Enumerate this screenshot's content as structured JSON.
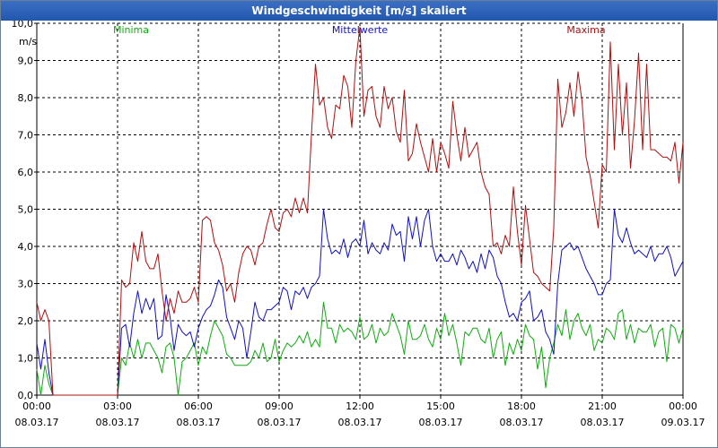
{
  "window": {
    "title": "Windgeschwindigkeit [m/s] skaliert"
  },
  "chart_data": {
    "type": "line",
    "title": "Windgeschwindigkeit [m/s] skaliert",
    "ylabel": "m/s",
    "xlabel": "",
    "ylim": [
      0,
      10
    ],
    "xlim": [
      0,
      24
    ],
    "grid": true,
    "y_ticks": [
      "0,0",
      "1,0",
      "2,0",
      "3,0",
      "4,0",
      "5,0",
      "6,0",
      "7,0",
      "8,0",
      "9,0",
      "10,0"
    ],
    "x_ticks": [
      {
        "time": "00:00",
        "date": "08.03.17",
        "hour": 0
      },
      {
        "time": "03:00",
        "date": "08.03.17",
        "hour": 3
      },
      {
        "time": "06:00",
        "date": "08.03.17",
        "hour": 6
      },
      {
        "time": "09:00",
        "date": "08.03.17",
        "hour": 9
      },
      {
        "time": "12:00",
        "date": "08.03.17",
        "hour": 12
      },
      {
        "time": "15:00",
        "date": "08.03.17",
        "hour": 15
      },
      {
        "time": "18:00",
        "date": "08.03.17",
        "hour": 18
      },
      {
        "time": "21:00",
        "date": "08.03.17",
        "hour": 21
      },
      {
        "time": "00:00",
        "date": "09.03.17",
        "hour": 24
      }
    ],
    "series": [
      {
        "name": "Minima",
        "color": "#11aa11",
        "x": [
          0,
          0.15,
          0.3,
          0.45,
          0.6,
          0.75,
          3.0,
          3.15,
          3.3,
          3.45,
          3.6,
          3.75,
          3.9,
          4.05,
          4.2,
          4.35,
          4.5,
          4.65,
          4.8,
          4.95,
          5.1,
          5.25,
          5.4,
          5.55,
          5.7,
          5.85,
          6.0,
          6.15,
          6.3,
          6.45,
          6.6,
          6.75,
          6.9,
          7.05,
          7.2,
          7.35,
          7.5,
          7.65,
          7.8,
          7.95,
          8.1,
          8.25,
          8.4,
          8.55,
          8.7,
          8.85,
          9.0,
          9.15,
          9.3,
          9.45,
          9.6,
          9.75,
          9.9,
          10.05,
          10.2,
          10.35,
          10.5,
          10.65,
          10.8,
          10.95,
          11.1,
          11.25,
          11.4,
          11.55,
          11.7,
          11.85,
          12.0,
          12.15,
          12.3,
          12.45,
          12.6,
          12.75,
          12.9,
          13.05,
          13.2,
          13.35,
          13.5,
          13.65,
          13.8,
          13.95,
          14.1,
          14.25,
          14.4,
          14.55,
          14.7,
          14.85,
          15.0,
          15.15,
          15.3,
          15.45,
          15.6,
          15.75,
          15.9,
          16.05,
          16.2,
          16.35,
          16.5,
          16.65,
          16.8,
          16.95,
          17.1,
          17.25,
          17.4,
          17.55,
          17.7,
          17.85,
          18.0,
          18.15,
          18.3,
          18.45,
          18.6,
          18.75,
          18.9,
          19.05,
          19.2,
          19.35,
          19.5,
          19.65,
          19.8,
          19.95,
          20.1,
          20.25,
          20.4,
          20.55,
          20.7,
          20.85,
          21.0,
          21.15,
          21.3,
          21.45,
          21.6,
          21.75,
          21.9,
          22.05,
          22.2,
          22.35,
          22.5,
          22.65,
          22.8,
          22.95,
          23.1,
          23.25,
          23.4,
          23.55,
          23.7,
          23.85,
          24.0
        ],
        "values": [
          0.7,
          0.0,
          0.8,
          0.3,
          0.0,
          0.0,
          0.0,
          1.0,
          0.8,
          1.4,
          1.0,
          1.5,
          1.0,
          1.4,
          1.4,
          1.2,
          1.0,
          0.6,
          1.3,
          1.4,
          1.0,
          0.0,
          0.9,
          1.0,
          1.2,
          1.4,
          0.8,
          1.3,
          1.1,
          1.6,
          2.0,
          1.8,
          1.6,
          1.1,
          1.0,
          0.8,
          0.8,
          0.8,
          0.8,
          0.9,
          1.2,
          1.0,
          1.4,
          0.9,
          1.0,
          1.5,
          0.9,
          1.2,
          1.4,
          1.3,
          1.4,
          1.6,
          1.4,
          1.7,
          1.3,
          1.5,
          1.3,
          2.5,
          1.8,
          1.8,
          1.4,
          1.9,
          1.7,
          1.8,
          1.7,
          1.5,
          2.1,
          1.5,
          1.6,
          1.9,
          1.4,
          1.8,
          1.6,
          1.7,
          2.2,
          1.9,
          1.6,
          1.1,
          2.0,
          1.5,
          1.5,
          1.6,
          1.9,
          1.5,
          1.3,
          1.8,
          1.5,
          2.2,
          1.6,
          1.9,
          1.4,
          0.8,
          1.7,
          1.6,
          1.8,
          1.8,
          1.5,
          1.4,
          1.8,
          1.0,
          1.5,
          1.7,
          0.8,
          1.4,
          1.1,
          1.5,
          1.2,
          1.9,
          1.6,
          1.5,
          0.7,
          1.3,
          0.2,
          1.0,
          1.4,
          1.9,
          1.6,
          2.3,
          1.5,
          2.0,
          2.2,
          1.8,
          1.6,
          1.9,
          1.2,
          1.5,
          1.4,
          1.8,
          1.7,
          1.5,
          2.2,
          2.3,
          1.5,
          1.9,
          1.4,
          1.8,
          1.7,
          1.7,
          1.9,
          1.3,
          1.7,
          1.8,
          0.9,
          1.9,
          1.8,
          1.4,
          1.8
        ]
      },
      {
        "name": "Mittelwerte",
        "color": "#1111bb",
        "x": [
          0,
          0.15,
          0.3,
          0.45,
          0.6,
          0.75,
          3.0,
          3.15,
          3.3,
          3.45,
          3.6,
          3.75,
          3.9,
          4.05,
          4.2,
          4.35,
          4.5,
          4.65,
          4.8,
          4.95,
          5.1,
          5.25,
          5.4,
          5.55,
          5.7,
          5.85,
          6.0,
          6.15,
          6.3,
          6.45,
          6.6,
          6.75,
          6.9,
          7.05,
          7.2,
          7.35,
          7.5,
          7.65,
          7.8,
          7.95,
          8.1,
          8.25,
          8.4,
          8.55,
          8.7,
          8.85,
          9.0,
          9.15,
          9.3,
          9.45,
          9.6,
          9.75,
          9.9,
          10.05,
          10.2,
          10.35,
          10.5,
          10.65,
          10.8,
          10.95,
          11.1,
          11.25,
          11.4,
          11.55,
          11.7,
          11.85,
          12.0,
          12.15,
          12.3,
          12.45,
          12.6,
          12.75,
          12.9,
          13.05,
          13.2,
          13.35,
          13.5,
          13.65,
          13.8,
          13.95,
          14.1,
          14.25,
          14.4,
          14.55,
          14.7,
          14.85,
          15.0,
          15.15,
          15.3,
          15.45,
          15.6,
          15.75,
          15.9,
          16.05,
          16.2,
          16.35,
          16.5,
          16.65,
          16.8,
          16.95,
          17.1,
          17.25,
          17.4,
          17.55,
          17.7,
          17.85,
          18.0,
          18.15,
          18.3,
          18.45,
          18.6,
          18.75,
          18.9,
          19.05,
          19.2,
          19.35,
          19.5,
          19.65,
          19.8,
          19.95,
          20.1,
          20.25,
          20.4,
          20.55,
          20.7,
          20.85,
          21.0,
          21.15,
          21.3,
          21.45,
          21.6,
          21.75,
          21.9,
          22.05,
          22.2,
          22.35,
          22.5,
          22.65,
          22.8,
          22.95,
          23.1,
          23.25,
          23.4,
          23.55,
          23.7,
          23.85,
          24.0
        ],
        "values": [
          1.4,
          0.7,
          1.5,
          0.6,
          0.0,
          0.0,
          0.0,
          1.8,
          1.9,
          1.3,
          2.2,
          2.8,
          2.2,
          2.6,
          2.3,
          2.6,
          1.5,
          1.6,
          2.7,
          2.1,
          1.2,
          1.9,
          1.7,
          1.6,
          1.7,
          1.3,
          1.8,
          2.1,
          2.3,
          2.4,
          2.7,
          3.1,
          2.9,
          2.1,
          1.8,
          1.5,
          2.0,
          1.8,
          1.0,
          1.7,
          2.5,
          2.1,
          2.0,
          2.3,
          2.3,
          2.4,
          2.5,
          2.9,
          2.8,
          2.3,
          2.8,
          2.7,
          2.9,
          2.6,
          2.9,
          3.0,
          3.2,
          5.0,
          4.2,
          3.8,
          3.9,
          3.8,
          4.2,
          3.7,
          4.1,
          4.2,
          4.0,
          4.7,
          3.8,
          4.1,
          3.9,
          3.8,
          4.1,
          3.9,
          4.6,
          4.3,
          4.4,
          3.6,
          4.8,
          4.2,
          4.8,
          4.0,
          4.7,
          5.0,
          4.0,
          3.6,
          3.8,
          3.6,
          3.6,
          3.8,
          3.5,
          3.9,
          3.7,
          3.4,
          3.6,
          3.3,
          3.8,
          3.4,
          3.9,
          3.7,
          3.2,
          3.0,
          2.5,
          2.1,
          2.2,
          2.0,
          2.5,
          2.6,
          2.8,
          2.0,
          2.1,
          2.3,
          1.7,
          1.5,
          1.1,
          3.0,
          3.9,
          4.0,
          4.1,
          3.9,
          4.0,
          3.7,
          3.4,
          3.2,
          3.0,
          2.7,
          2.7,
          3.0,
          3.1,
          5.0,
          4.3,
          4.1,
          4.5,
          4.1,
          3.8,
          3.9,
          3.8,
          3.7,
          4.0,
          3.6,
          3.8,
          3.8,
          4.0,
          3.7,
          3.2,
          3.4,
          3.6
        ]
      },
      {
        "name": "Maxima",
        "color": "#aa1111",
        "x": [
          0,
          0.15,
          0.3,
          0.45,
          0.6,
          0.75,
          3.0,
          3.15,
          3.3,
          3.45,
          3.6,
          3.75,
          3.9,
          4.05,
          4.2,
          4.35,
          4.5,
          4.65,
          4.8,
          4.95,
          5.1,
          5.25,
          5.4,
          5.55,
          5.7,
          5.85,
          6.0,
          6.15,
          6.3,
          6.45,
          6.6,
          6.75,
          6.9,
          7.05,
          7.2,
          7.35,
          7.5,
          7.65,
          7.8,
          7.95,
          8.1,
          8.25,
          8.4,
          8.55,
          8.7,
          8.85,
          9.0,
          9.15,
          9.3,
          9.45,
          9.6,
          9.75,
          9.9,
          10.05,
          10.2,
          10.35,
          10.5,
          10.65,
          10.8,
          10.95,
          11.1,
          11.25,
          11.4,
          11.55,
          11.7,
          11.85,
          12.0,
          12.15,
          12.3,
          12.45,
          12.6,
          12.75,
          12.9,
          13.05,
          13.2,
          13.35,
          13.5,
          13.65,
          13.8,
          13.95,
          14.1,
          14.25,
          14.4,
          14.55,
          14.7,
          14.85,
          15.0,
          15.15,
          15.3,
          15.45,
          15.6,
          15.75,
          15.9,
          16.05,
          16.2,
          16.35,
          16.5,
          16.65,
          16.8,
          16.95,
          17.1,
          17.25,
          17.4,
          17.55,
          17.7,
          17.85,
          18.0,
          18.15,
          18.3,
          18.45,
          18.6,
          18.75,
          18.9,
          19.05,
          19.2,
          19.35,
          19.5,
          19.65,
          19.8,
          19.95,
          20.1,
          20.25,
          20.4,
          20.55,
          20.7,
          20.85,
          21.0,
          21.15,
          21.3,
          21.45,
          21.6,
          21.75,
          21.9,
          22.05,
          22.2,
          22.35,
          22.5,
          22.65,
          22.8,
          22.95,
          23.1,
          23.25,
          23.4,
          23.55,
          23.7,
          23.85,
          24.0
        ],
        "values": [
          2.5,
          2.0,
          2.3,
          2.0,
          0.0,
          0.0,
          0.0,
          3.1,
          2.9,
          3.0,
          4.1,
          3.6,
          4.4,
          3.6,
          3.4,
          3.4,
          3.8,
          2.8,
          2.0,
          2.6,
          2.2,
          2.8,
          2.5,
          2.5,
          2.6,
          2.9,
          2.5,
          4.7,
          4.8,
          4.7,
          4.1,
          3.9,
          3.5,
          2.8,
          3.0,
          2.5,
          3.3,
          3.8,
          4.0,
          3.9,
          3.5,
          4.0,
          4.1,
          4.6,
          5.0,
          4.5,
          4.4,
          4.9,
          5.0,
          4.8,
          5.3,
          4.9,
          5.3,
          4.9,
          7.0,
          8.9,
          7.8,
          8.0,
          7.2,
          6.9,
          7.8,
          7.7,
          8.6,
          8.3,
          7.2,
          9.0,
          9.9,
          7.5,
          8.2,
          8.3,
          7.5,
          7.2,
          8.3,
          7.7,
          8.0,
          7.1,
          6.8,
          8.2,
          6.3,
          6.5,
          7.3,
          6.8,
          6.4,
          6.0,
          6.9,
          6.0,
          6.8,
          6.5,
          6.1,
          7.9,
          7.0,
          6.3,
          7.2,
          6.4,
          6.6,
          6.8,
          6.0,
          5.6,
          5.4,
          4.0,
          4.1,
          3.8,
          4.3,
          4.0,
          5.6,
          4.4,
          3.5,
          5.1,
          4.2,
          3.3,
          3.2,
          3.0,
          2.9,
          2.8,
          4.5,
          8.5,
          7.2,
          7.6,
          8.4,
          7.5,
          8.7,
          7.9,
          6.4,
          5.9,
          5.2,
          4.5,
          6.2,
          6.0,
          9.5,
          6.6,
          8.9,
          7.0,
          8.4,
          6.1,
          7.4,
          9.2,
          6.6,
          8.9,
          6.6,
          6.6,
          6.5,
          6.4,
          6.4,
          6.3,
          6.8,
          5.7,
          6.8
        ]
      }
    ]
  }
}
